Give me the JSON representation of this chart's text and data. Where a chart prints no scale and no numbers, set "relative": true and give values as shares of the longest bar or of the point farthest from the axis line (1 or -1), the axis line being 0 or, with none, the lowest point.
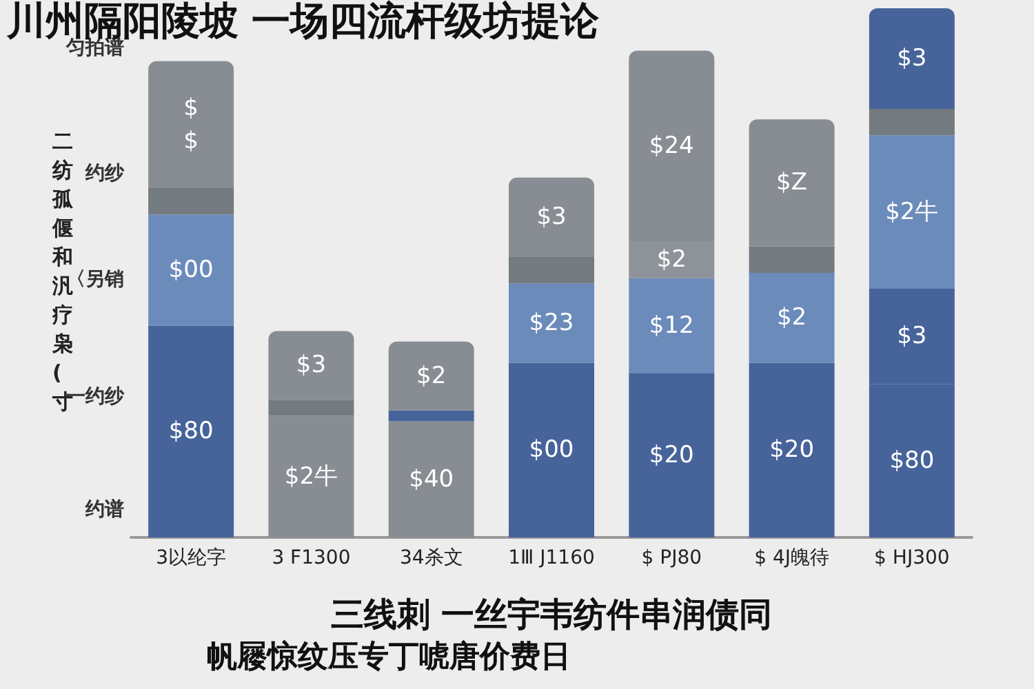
{
  "chart_data": {
    "type": "bar",
    "stacked": true,
    "relative": true,
    "title": "川州隔阳陵坡 一场四流杆级坊提论",
    "ylabel": "二纺孤偃和汎疗枭(寸",
    "xlabel": "三线刺 一丝宇韦纺件串润债同",
    "categories": [
      "3以纶字",
      "3 F1300",
      "34杀文",
      "1Ⅲ J1160",
      "$ PJ80",
      "$ 4J魄待",
      "$ HJ300"
    ],
    "series": [
      {
        "values": [
          0.4,
          0.23,
          0.22,
          0.33,
          0.31,
          0.33,
          0.29
        ],
        "colors": [
          "#46649a",
          "#878d93",
          "#878d93",
          "#46649a",
          "#46649a",
          "#46649a",
          "#46649a"
        ]
      },
      {
        "values": [
          0.21,
          null,
          0.02,
          0.15,
          0.18,
          0.17,
          0.18
        ],
        "colors": [
          "#6b8bbb",
          "#878d93",
          "#46649a",
          "#6b8bbb",
          "#6b8bbb",
          "#6b8bbb",
          "#46649a"
        ]
      },
      {
        "values": [
          0.05,
          0.03,
          null,
          0.05,
          0.07,
          0.05,
          0.29
        ],
        "colors": [
          "#737a80",
          "#737a80",
          "#737a80",
          "#737a80",
          "#8d9399",
          "#737a80",
          "#6b8bbb"
        ]
      },
      {
        "values": [
          0.24,
          0.13,
          0.13,
          0.15,
          0.36,
          0.24,
          0.05
        ],
        "colors": [
          "#878d93",
          "#878d93",
          "#878d93",
          "#878d93",
          "#878d93",
          "#878d93",
          "#737a80"
        ]
      },
      {
        "values": [
          null,
          null,
          null,
          null,
          null,
          null,
          0.19
        ],
        "colors": [
          "#46649a",
          "#46649a",
          "#46649a",
          "#46649a",
          "#46649a",
          "#46649a",
          "#46649a"
        ]
      }
    ],
    "annotations": [
      "匀拍谱",
      "约纱",
      "〈另销",
      "一约纱",
      "约谱",
      "帆屦惊纹压专丁唬唐价费日",
      "$80",
      "$00",
      "$\n$",
      "$2牛",
      "$3",
      "$40",
      "$2",
      "$00",
      "$23",
      "$3",
      "$20",
      "$12",
      "$2",
      "$24",
      "$20",
      "$2",
      "$Z",
      "$80",
      "$3",
      "$2牛",
      "$3"
    ]
  }
}
